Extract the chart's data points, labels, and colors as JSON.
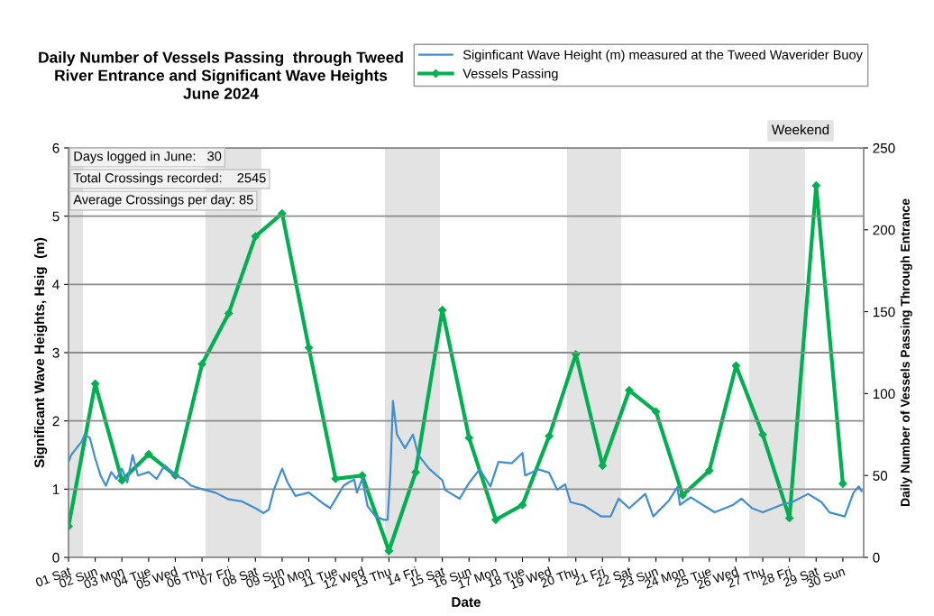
{
  "chart_data": {
    "type": "line",
    "title": "Daily Number of Vessels Passing  through Tweed\nRiver Entrance and Significant Wave Heights\nJune 2024",
    "xlabel": "Date",
    "ylabel": "Significant Wave Heights, Hsig  (m)",
    "y2label": "Daily Number of Vessels Passing Through Entrance",
    "xlim": [
      1,
      30.78
    ],
    "xticks": [
      {
        "value": 1,
        "label": "01 Sat"
      },
      {
        "value": 2,
        "label": "02 Sun"
      },
      {
        "value": 3,
        "label": "03 Mon"
      },
      {
        "value": 4,
        "label": "04 Tue"
      },
      {
        "value": 5,
        "label": "05 Wed"
      },
      {
        "value": 6,
        "label": "06 Thu"
      },
      {
        "value": 7,
        "label": "07 Fri"
      },
      {
        "value": 8,
        "label": "08 Sat"
      },
      {
        "value": 9,
        "label": "09 Sun"
      },
      {
        "value": 10,
        "label": "10 Mon"
      },
      {
        "value": 11,
        "label": "11 Tue"
      },
      {
        "value": 12,
        "label": "12 Wed"
      },
      {
        "value": 13,
        "label": "13 Thu"
      },
      {
        "value": 14,
        "label": "14 Fri"
      },
      {
        "value": 15,
        "label": "15 Sat"
      },
      {
        "value": 16,
        "label": "16 Sun"
      },
      {
        "value": 17,
        "label": "17 Mon"
      },
      {
        "value": 18,
        "label": "18 Tue"
      },
      {
        "value": 19,
        "label": "19 Wed"
      },
      {
        "value": 20,
        "label": "20 Thu"
      },
      {
        "value": 21,
        "label": "21 Fri"
      },
      {
        "value": 22,
        "label": "22 Sat"
      },
      {
        "value": 23,
        "label": "23 Sun"
      },
      {
        "value": 24,
        "label": "24 Mon"
      },
      {
        "value": 25,
        "label": "25 Tue"
      },
      {
        "value": 26,
        "label": "26 Wed"
      },
      {
        "value": 27,
        "label": "27 Thu"
      },
      {
        "value": 28,
        "label": "28 Fri"
      },
      {
        "value": 29,
        "label": "29 Sat"
      },
      {
        "value": 30,
        "label": "30 Sun"
      }
    ],
    "ylim": [
      0,
      6
    ],
    "yticks": [
      0,
      1,
      2,
      3,
      4,
      5,
      6
    ],
    "y2lim": [
      0,
      250
    ],
    "y2ticks": [
      0,
      50,
      100,
      150,
      200,
      250
    ],
    "grid": "y",
    "legend": "top right",
    "series": [
      {
        "name": "Siginficant Wave Height (m) measured at the Tweed Waverider Buoy",
        "color": "#3f8fd2",
        "marker": "none",
        "x": [
          1.0,
          1.1,
          1.3,
          1.5,
          1.6,
          1.8,
          2.0,
          2.2,
          2.4,
          2.6,
          2.8,
          3.0,
          3.2,
          3.4,
          3.6,
          4.0,
          4.3,
          4.6,
          5.0,
          5.3,
          5.6,
          6.0,
          6.5,
          7.0,
          7.5,
          8.0,
          8.3,
          8.5,
          8.7,
          8.9,
          9.0,
          9.2,
          9.5,
          10.0,
          10.5,
          10.8,
          11.0,
          11.3,
          11.5,
          11.7,
          11.8,
          12.0,
          12.2,
          12.5,
          12.8,
          12.95,
          13.05,
          13.15,
          13.3,
          13.6,
          13.9,
          14.1,
          14.5,
          15.0,
          15.1,
          15.65,
          16.0,
          16.4,
          16.8,
          17.1,
          17.6,
          18.0,
          18.1,
          18.6,
          19.0,
          19.3,
          19.6,
          19.8,
          20.3,
          20.95,
          21.3,
          21.6,
          22.0,
          22.6,
          22.9,
          23.5,
          23.8,
          23.9,
          24.3,
          25.2,
          25.9,
          26.2,
          26.6,
          27.0,
          27.7,
          28.1,
          28.7,
          29.2,
          29.5,
          30.07,
          30.4,
          30.6,
          30.7
        ],
        "values": [
          1.4,
          1.5,
          1.6,
          1.7,
          1.8,
          1.75,
          1.45,
          1.2,
          1.05,
          1.25,
          1.15,
          1.3,
          1.1,
          1.5,
          1.2,
          1.25,
          1.15,
          1.35,
          1.2,
          1.15,
          1.05,
          1.0,
          0.95,
          0.85,
          0.82,
          0.72,
          0.65,
          0.7,
          1.0,
          1.2,
          1.3,
          1.1,
          0.9,
          0.95,
          0.8,
          0.72,
          0.85,
          1.05,
          1.1,
          1.14,
          0.95,
          1.15,
          0.75,
          0.6,
          0.55,
          0.55,
          1.2,
          2.29,
          1.8,
          1.6,
          1.8,
          1.5,
          1.3,
          1.13,
          0.99,
          0.86,
          1.09,
          1.29,
          1.04,
          1.4,
          1.38,
          1.53,
          1.2,
          1.29,
          1.24,
          0.99,
          1.07,
          0.81,
          0.76,
          0.6,
          0.6,
          0.86,
          0.72,
          0.93,
          0.6,
          0.84,
          1.03,
          0.77,
          0.88,
          0.66,
          0.77,
          0.86,
          0.72,
          0.66,
          0.77,
          0.81,
          0.93,
          0.81,
          0.66,
          0.6,
          0.95,
          1.04,
          0.97
        ]
      },
      {
        "name": "Vessels Passing",
        "color": "#00b050",
        "marker": "diamond",
        "axis": "y2",
        "x": [
          1,
          2,
          3,
          4,
          5,
          6,
          7,
          8,
          9,
          10,
          11,
          12,
          13,
          14,
          15,
          16,
          17,
          18,
          19,
          20,
          21,
          22,
          23,
          24,
          25,
          26,
          27,
          28,
          29,
          30
        ],
        "values": [
          19,
          106,
          47,
          63,
          50,
          118,
          149,
          196,
          210,
          128,
          48,
          50,
          4,
          52,
          151,
          73,
          23,
          32,
          74,
          124,
          56,
          102,
          89,
          38,
          53,
          117,
          75,
          24,
          227,
          45
        ]
      }
    ],
    "bands": [
      {
        "axis": "x",
        "from": 1,
        "to": 1.54,
        "color": "#e3e3e3"
      },
      {
        "axis": "x",
        "from": 6.13,
        "to": 8.22,
        "color": "#e3e3e3"
      },
      {
        "axis": "x",
        "from": 12.85,
        "to": 14.91,
        "color": "#e3e3e3"
      },
      {
        "axis": "x",
        "from": 19.67,
        "to": 21.7,
        "color": "#e3e3e3"
      },
      {
        "axis": "x",
        "from": 26.49,
        "to": 28.58,
        "color": "#e3e3e3"
      }
    ],
    "annotations": [
      "Days logged in June:   30",
      "Total Crossings recorded:    2545",
      "Average Crossings per day: 85",
      "Weekend"
    ]
  }
}
